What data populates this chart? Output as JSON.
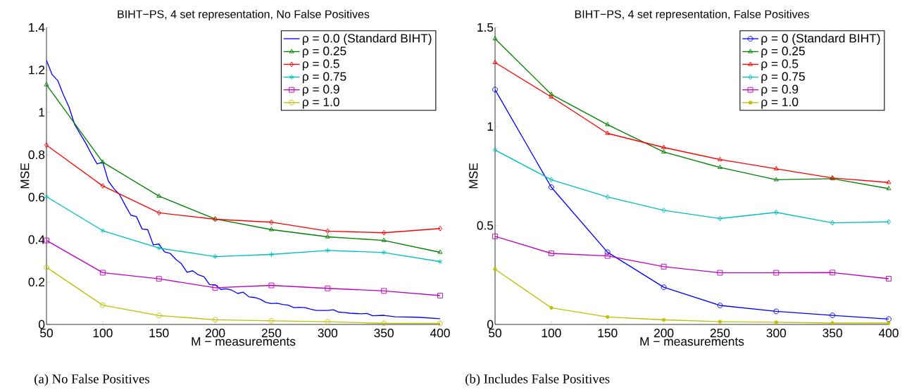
{
  "chart_data": [
    {
      "type": "line",
      "title": "BIHT−PS, 4 set representation, No False Positives",
      "xlabel": "M − measurements",
      "ylabel": "MSE",
      "xlim": [
        50,
        400
      ],
      "ylim": [
        0,
        1.4
      ],
      "xticks": [
        50,
        100,
        150,
        200,
        250,
        300,
        350,
        400
      ],
      "yticks": [
        0,
        0.2,
        0.4,
        0.6,
        0.8,
        1,
        1.2,
        1.4
      ],
      "legend": "top right",
      "annotations": [
        "(a) No False Positives"
      ],
      "series": [
        {
          "name": "ρ = 0.0 (Standard BIHT)",
          "color": "#0000ff",
          "marker": "none",
          "x": [
            50,
            55,
            60,
            65,
            70,
            75,
            80,
            85,
            90,
            95,
            100,
            105,
            110,
            115,
            120,
            125,
            130,
            135,
            140,
            145,
            150,
            155,
            160,
            165,
            170,
            175,
            180,
            185,
            190,
            195,
            200,
            205,
            210,
            215,
            220,
            225,
            230,
            235,
            240,
            245,
            250,
            255,
            260,
            265,
            270,
            275,
            280,
            285,
            290,
            300,
            305,
            310,
            315,
            320,
            330,
            335,
            340,
            350,
            360,
            380,
            400
          ],
          "values": [
            1.245,
            1.178,
            1.15,
            1.083,
            1.025,
            0.943,
            0.898,
            0.854,
            0.803,
            0.757,
            0.765,
            0.676,
            0.64,
            0.612,
            0.562,
            0.515,
            0.508,
            0.45,
            0.447,
            0.375,
            0.379,
            0.342,
            0.335,
            0.307,
            0.286,
            0.246,
            0.253,
            0.234,
            0.225,
            0.188,
            0.187,
            0.165,
            0.168,
            0.161,
            0.146,
            0.152,
            0.13,
            0.127,
            0.119,
            0.104,
            0.098,
            0.1,
            0.094,
            0.091,
            0.079,
            0.081,
            0.079,
            0.072,
            0.066,
            0.066,
            0.069,
            0.058,
            0.056,
            0.053,
            0.05,
            0.052,
            0.041,
            0.043,
            0.036,
            0.034,
            0.027
          ]
        },
        {
          "name": "ρ = 0.25",
          "color": "#008000",
          "marker": "triangle",
          "x": [
            50,
            100,
            150,
            200,
            250,
            300,
            350,
            400
          ],
          "values": [
            1.13,
            0.765,
            0.605,
            0.497,
            0.447,
            0.413,
            0.396,
            0.34
          ]
        },
        {
          "name": "ρ = 0.5",
          "color": "#ff0000",
          "marker": "diamond",
          "x": [
            50,
            100,
            150,
            200,
            250,
            300,
            350,
            400
          ],
          "values": [
            0.845,
            0.653,
            0.526,
            0.496,
            0.482,
            0.44,
            0.432,
            0.452
          ]
        },
        {
          "name": "ρ = 0.75",
          "color": "#00bfbf",
          "marker": "cross",
          "x": [
            50,
            100,
            150,
            200,
            250,
            300,
            350,
            400
          ],
          "values": [
            0.602,
            0.442,
            0.36,
            0.32,
            0.33,
            0.349,
            0.339,
            0.296
          ]
        },
        {
          "name": "ρ = 0.9",
          "color": "#bf00bf",
          "marker": "square",
          "x": [
            50,
            100,
            150,
            200,
            250,
            300,
            350,
            400
          ],
          "values": [
            0.396,
            0.244,
            0.215,
            0.173,
            0.184,
            0.17,
            0.158,
            0.136
          ]
        },
        {
          "name": "ρ = 1.0",
          "color": "#bfbf00",
          "marker": "circle",
          "x": [
            50,
            100,
            150,
            200,
            250,
            300,
            350,
            400
          ],
          "values": [
            0.269,
            0.091,
            0.042,
            0.022,
            0.017,
            0.013,
            0.005,
            0.005
          ]
        }
      ]
    },
    {
      "type": "line",
      "title": "BIHT−PS, 4 set representation, False Positives",
      "xlabel": "M − measurements",
      "ylabel": "MSE",
      "xlim": [
        50,
        400
      ],
      "ylim": [
        0,
        1.5
      ],
      "xticks": [
        50,
        100,
        150,
        200,
        250,
        300,
        350,
        400
      ],
      "yticks": [
        0,
        0.5,
        1,
        1.5
      ],
      "legend": "top right",
      "annotations": [
        "(b) Includes False Positives"
      ],
      "series": [
        {
          "name": "ρ = 0 (Standard BIHT)",
          "color": "#0000ff",
          "marker": "circle",
          "x": [
            50,
            100,
            150,
            200,
            250,
            300,
            350,
            400
          ],
          "values": [
            1.186,
            0.693,
            0.365,
            0.188,
            0.096,
            0.066,
            0.046,
            0.027
          ]
        },
        {
          "name": "ρ = 0.25",
          "color": "#008000",
          "marker": "triangle",
          "x": [
            50,
            100,
            150,
            200,
            250,
            300,
            350,
            400
          ],
          "values": [
            1.443,
            1.162,
            1.009,
            0.871,
            0.793,
            0.731,
            0.736,
            0.686
          ]
        },
        {
          "name": "ρ = 0.5",
          "color": "#ff0000",
          "marker": "triangle",
          "x": [
            50,
            100,
            150,
            200,
            250,
            300,
            350,
            400
          ],
          "values": [
            1.323,
            1.149,
            0.965,
            0.894,
            0.833,
            0.786,
            0.74,
            0.717
          ]
        },
        {
          "name": "ρ = 0.75",
          "color": "#00bfbf",
          "marker": "diamond",
          "x": [
            50,
            100,
            150,
            200,
            250,
            300,
            350,
            400
          ],
          "values": [
            0.881,
            0.731,
            0.644,
            0.576,
            0.535,
            0.566,
            0.513,
            0.518
          ]
        },
        {
          "name": "ρ = 0.9",
          "color": "#bf00bf",
          "marker": "square",
          "x": [
            50,
            100,
            150,
            200,
            250,
            300,
            350,
            400
          ],
          "values": [
            0.445,
            0.359,
            0.346,
            0.292,
            0.261,
            0.261,
            0.262,
            0.231
          ]
        },
        {
          "name": "ρ = 1.0",
          "color": "#bfbf00",
          "marker": "cross",
          "x": [
            50,
            100,
            150,
            200,
            250,
            300,
            350,
            400
          ],
          "values": [
            0.279,
            0.084,
            0.038,
            0.023,
            0.014,
            0.011,
            0.007,
            0.007
          ]
        }
      ]
    }
  ]
}
